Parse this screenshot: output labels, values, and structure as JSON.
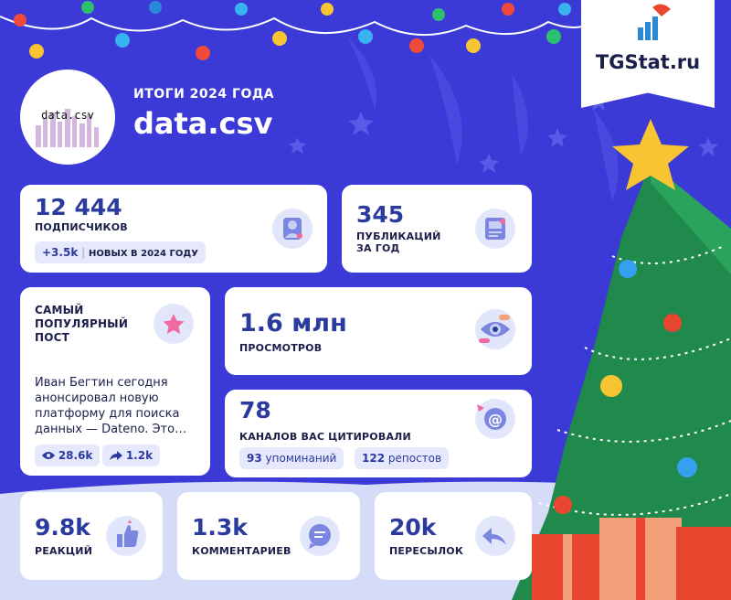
{
  "header": {
    "subtitle": "ИТОГИ 2024 ГОДА",
    "channel_name": "data.csv",
    "avatar_text": "data.csv",
    "brand": "TGStat.ru"
  },
  "subscribers": {
    "value": "12 444",
    "label": "ПОДПИСЧИКОВ",
    "new_value": "+3.5k",
    "new_label": "НОВЫХ В 2024 ГОДУ"
  },
  "publications": {
    "value": "345",
    "label_line1": "ПУБЛИКАЦИЙ",
    "label_line2": "ЗА ГОД"
  },
  "popular_post": {
    "title_line1": "САМЫЙ",
    "title_line2": "ПОПУЛЯРНЫЙ",
    "title_line3": "ПОСТ",
    "text_line1": "Иван Бегтин сегодня",
    "text_line2": "анонсировал новую",
    "text_line3": "платформу для поиска",
    "text_line4": "данных — Dateno. Это…",
    "views": "28.6k",
    "shares": "1.2k"
  },
  "views": {
    "value": "1.6 млн",
    "label": "ПРОСМОТРОВ"
  },
  "citations": {
    "value": "78",
    "label": "КАНАЛОВ ВАС ЦИТИРОВАЛИ",
    "mentions_value": "93",
    "mentions_label": "упоминаний",
    "reposts_value": "122",
    "reposts_label": "репостов"
  },
  "reactions": {
    "value": "9.8k",
    "label": "РЕАКЦИЙ"
  },
  "comments": {
    "value": "1.3k",
    "label": "КОММЕНТАРИЕВ"
  },
  "forwards": {
    "value": "20k",
    "label": "ПЕРЕСЫЛОК"
  },
  "colors": {
    "background": "#3b3ad6",
    "card": "#ffffff",
    "accent": "#2b3a9e",
    "tree": "#1f8a4c",
    "gift": "#e8462e",
    "star": "#f7c531"
  },
  "icons": {
    "subscribers": "person-icon",
    "publications": "document-icon",
    "popular_post": "star-icon",
    "views": "eye-icon",
    "citations": "at-sign-icon",
    "reactions": "thumbs-up-icon",
    "comments": "chat-bubble-icon",
    "forwards": "forward-arrow-icon"
  }
}
